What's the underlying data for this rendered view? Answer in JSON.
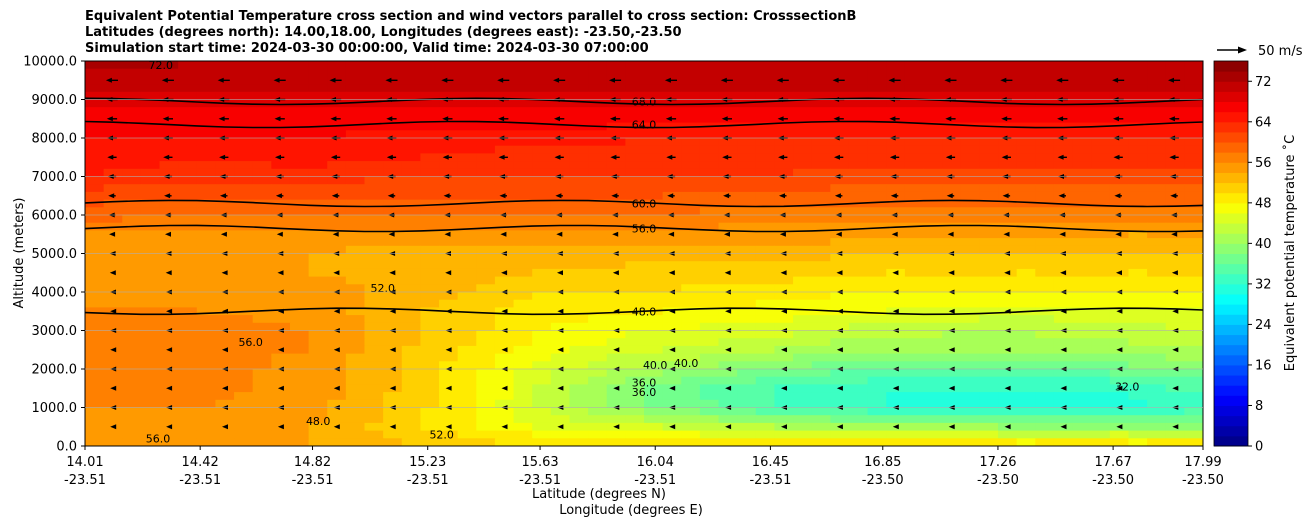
{
  "title_lines": [
    "Equivalent Potential Temperature cross section and wind vectors parallel to cross section: CrosssectionB",
    "Latitudes (degrees north): 14.00,18.00, Longitudes (degrees east): -23.50,-23.50",
    "Simulation start time: 2024-03-30 00:00:00, Valid time: 2024-03-30 07:00:00"
  ],
  "wind_key_label": "50 m/s",
  "chart_data": {
    "type": "heatmap",
    "xlabel": "Latitude (degrees N)",
    "xlabel2": "Longitude (degrees E)",
    "ylabel": "Altitude (meters)",
    "ylim": [
      0,
      10000
    ],
    "y_ticks": [
      "0.0",
      "1000.0",
      "2000.0",
      "3000.0",
      "4000.0",
      "5000.0",
      "6000.0",
      "7000.0",
      "8000.0",
      "9000.0",
      "10000.0"
    ],
    "y_tick_values": [
      0,
      1000,
      2000,
      3000,
      4000,
      5000,
      6000,
      7000,
      8000,
      9000,
      10000
    ],
    "x_ticks": [
      {
        "lat": "14.01",
        "lon": "-23.51"
      },
      {
        "lat": "14.42",
        "lon": "-23.51"
      },
      {
        "lat": "14.82",
        "lon": "-23.51"
      },
      {
        "lat": "15.23",
        "lon": "-23.51"
      },
      {
        "lat": "15.63",
        "lon": "-23.51"
      },
      {
        "lat": "16.04",
        "lon": "-23.51"
      },
      {
        "lat": "16.45",
        "lon": "-23.51"
      },
      {
        "lat": "16.85",
        "lon": "-23.50"
      },
      {
        "lat": "17.26",
        "lon": "-23.50"
      },
      {
        "lat": "17.67",
        "lon": "-23.50"
      },
      {
        "lat": "17.99",
        "lon": "-23.50"
      }
    ],
    "colorbar": {
      "label": "Equivalent potential temperature ˚C",
      "min": 0,
      "max": 76,
      "step": 2,
      "ticks": [
        "0",
        "8",
        "16",
        "24",
        "32",
        "40",
        "48",
        "56",
        "64",
        "72"
      ],
      "tick_values": [
        0,
        8,
        16,
        24,
        32,
        40,
        48,
        56,
        64,
        72
      ]
    },
    "contour_labels": [
      {
        "text": "68.0",
        "x": 16.0,
        "y": 8950
      },
      {
        "text": "64.0",
        "x": 16.0,
        "y": 8350
      },
      {
        "text": "60.0",
        "x": 16.0,
        "y": 6300
      },
      {
        "text": "56.0",
        "x": 16.0,
        "y": 5650
      },
      {
        "text": "48.0",
        "x": 16.0,
        "y": 3500
      },
      {
        "text": "40.0",
        "x": 16.04,
        "y": 2100
      },
      {
        "text": "40.0",
        "x": 16.15,
        "y": 2150
      },
      {
        "text": "36.0",
        "x": 16.0,
        "y": 1650
      },
      {
        "text": "36.0",
        "x": 16.0,
        "y": 1400
      },
      {
        "text": "32.0",
        "x": 17.72,
        "y": 1550
      },
      {
        "text": "52.0",
        "x": 15.07,
        "y": 4100
      },
      {
        "text": "56.0",
        "x": 14.6,
        "y": 2700
      },
      {
        "text": "48.0",
        "x": 14.84,
        "y": 650
      },
      {
        "text": "52.0",
        "x": 15.28,
        "y": 300
      },
      {
        "text": "56.0",
        "x": 14.27,
        "y": 200
      },
      {
        "text": "72.0",
        "x": 14.28,
        "y": 9900
      }
    ],
    "theta_e_field": {
      "lat_grid": [
        14.01,
        14.42,
        14.82,
        15.23,
        15.63,
        16.04,
        16.45,
        16.85,
        17.26,
        17.67,
        17.99
      ],
      "height_grid": [
        0,
        500,
        1000,
        1500,
        2000,
        2500,
        3000,
        3500,
        4000,
        4500,
        5000,
        5500,
        6000,
        6500,
        7000,
        7500,
        8000,
        8500,
        9000,
        9500,
        10000
      ],
      "values": [
        [
          54,
          54,
          54,
          52,
          50,
          50,
          50,
          50,
          50,
          50,
          50
        ],
        [
          55,
          55,
          54,
          50,
          46,
          44,
          42,
          41,
          40,
          40,
          40
        ],
        [
          56,
          56,
          55,
          50,
          44,
          38,
          34,
          32,
          31,
          31,
          33
        ],
        [
          57,
          57,
          55,
          51,
          44,
          37,
          34,
          32,
          32,
          32,
          35
        ],
        [
          57,
          57,
          55,
          51,
          45,
          41,
          38,
          36,
          36,
          37,
          38
        ],
        [
          57,
          57,
          56,
          51,
          47,
          44,
          42,
          40,
          40,
          41,
          42
        ],
        [
          57,
          57,
          56,
          52,
          48,
          46,
          45,
          43,
          42,
          43,
          44
        ],
        [
          56,
          56,
          55,
          52,
          49,
          48,
          47,
          46,
          45,
          45,
          46
        ],
        [
          55,
          55,
          55,
          53,
          50,
          50,
          49,
          48,
          48,
          48,
          48
        ],
        [
          54,
          54,
          54,
          53,
          52,
          51,
          51,
          50,
          50,
          50,
          50
        ],
        [
          54,
          54,
          54,
          53,
          53,
          53,
          53,
          52,
          52,
          52,
          52
        ],
        [
          55,
          55,
          55,
          55,
          55,
          55,
          55,
          55,
          54,
          54,
          54
        ],
        [
          59,
          58,
          58,
          58,
          58,
          58,
          57,
          57,
          57,
          57,
          57
        ],
        [
          61,
          60,
          60,
          60,
          60,
          60,
          59,
          59,
          59,
          59,
          59
        ],
        [
          64,
          63,
          63,
          62,
          62,
          62,
          62,
          61,
          61,
          61,
          61
        ],
        [
          65,
          64,
          65,
          64,
          63,
          63,
          63,
          63,
          63,
          63,
          63
        ],
        [
          66,
          66,
          66,
          65,
          65,
          64,
          64,
          64,
          64,
          64,
          64
        ],
        [
          67,
          67,
          67,
          67,
          67,
          67,
          67,
          67,
          67,
          67,
          67
        ],
        [
          69,
          69,
          69,
          69,
          69,
          69,
          69,
          69,
          69,
          69,
          69
        ],
        [
          71,
          71,
          71,
          71,
          71,
          71,
          71,
          71,
          71,
          71,
          71
        ],
        [
          73,
          72,
          72,
          72,
          72,
          72,
          72,
          72,
          72,
          72,
          72
        ]
      ]
    },
    "wind_vectors": {
      "lat_grid": [
        14.01,
        14.42,
        14.82,
        15.23,
        15.63,
        16.04,
        16.45,
        16.85,
        17.26,
        17.67,
        17.99
      ],
      "height_grid": [
        500,
        1000,
        1500,
        2000,
        2500,
        3000,
        3500,
        4000,
        4500,
        5000,
        5500,
        6000,
        6500,
        7000,
        7500,
        8000,
        8500,
        9000,
        9500
      ],
      "speed_by_height_ms": [
        1,
        1,
        1,
        2,
        2,
        3,
        3,
        4,
        5,
        6,
        8,
        10,
        12,
        14,
        16,
        17,
        18,
        20,
        22
      ],
      "direction": "toward decreasing latitude"
    }
  }
}
